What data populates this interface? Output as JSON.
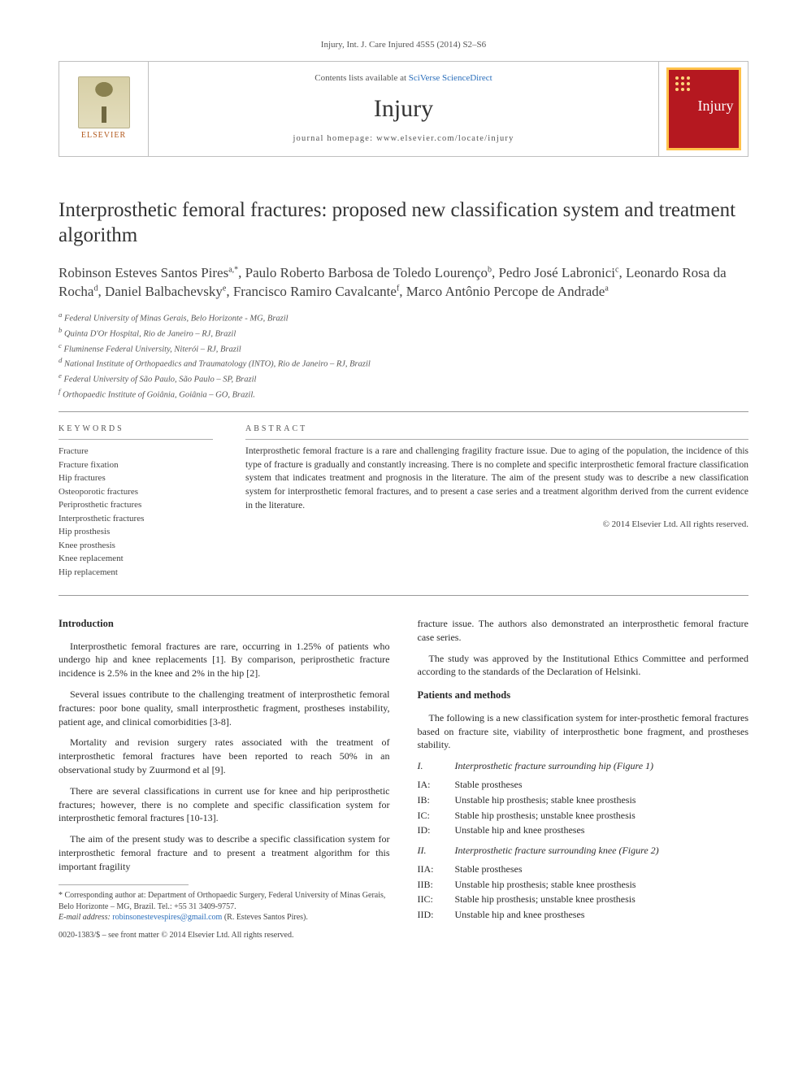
{
  "running_head": "Injury, Int. J. Care Injured 45S5 (2014) S2–S6",
  "masthead": {
    "contents_prefix": "Contents lists available at ",
    "contents_link": "SciVerse ScienceDirect",
    "journal": "Injury",
    "homepage_label": "journal homepage: www.elsevier.com/locate/injury",
    "publisher_word": "ELSEVIER",
    "cover_word": "Injury"
  },
  "article": {
    "title": "Interprosthetic femoral fractures: proposed new classification system and treatment algorithm",
    "authors_html": "Robinson Esteves Santos Pires<sup>a,*</sup>, Paulo Roberto Barbosa de Toledo Lourenço<sup>b</sup>, Pedro José Labronici<sup>c</sup>, Leonardo Rosa da Rocha<sup>d</sup>, Daniel Balbachevsky<sup>e</sup>, Francisco Ramiro Cavalcante<sup>f</sup>, Marco Antônio Percope de Andrade<sup>a</sup>",
    "affiliations": [
      "a Federal University of Minas Gerais, Belo Horizonte - MG, Brazil",
      "b Quinta D'Or Hospital, Rio de Janeiro – RJ, Brazil",
      "c Fluminense Federal University, Niterói – RJ, Brazil",
      "d National Institute of Orthopaedics and Traumatology (INTO), Rio de Janeiro – RJ, Brazil",
      "e Federal University of São Paulo, São Paulo – SP, Brazil",
      "f Orthopaedic Institute of Goiânia, Goiânia – GO, Brazil."
    ]
  },
  "ka": {
    "k_head": "KEYWORDS",
    "a_head": "ABSTRACT",
    "keywords": [
      "Fracture",
      "Fracture fixation",
      "Hip fractures",
      "Osteoporotic fractures",
      "Periprosthetic fractures",
      "Interprosthetic fractures",
      "Hip prosthesis",
      "Knee prosthesis",
      "Knee replacement",
      "Hip replacement"
    ],
    "abstract": "Interprosthetic femoral fracture is a rare and challenging fragility fracture issue. Due to aging of the population, the incidence of this type of fracture is gradually and constantly increasing. There is no complete and specific interprosthetic femoral fracture classification system that indicates treatment and prognosis in the literature. The aim of the present study was to describe a new classification system for interprosthetic femoral fractures, and to present a case series and a treatment algorithm derived from the current evidence in the literature.",
    "copyright": "© 2014 Elsevier Ltd. All rights reserved."
  },
  "body": {
    "left": {
      "h_intro": "Introduction",
      "p1": "Interprosthetic femoral fractures are rare, occurring in 1.25% of patients who undergo hip and knee replacements [1]. By comparison, periprosthetic fracture incidence is 2.5% in the knee and 2% in the hip [2].",
      "p2": "Several issues contribute to the challenging treatment of interprosthetic femoral fractures: poor bone quality, small interprosthetic fragment, prostheses instability, patient age, and clinical comorbidities [3-8].",
      "p3": "Mortality and revision surgery rates associated with the treatment of interprosthetic femoral fractures have been reported to reach 50% in an observational study by Zuurmond et al [9].",
      "p4": "There are several classifications in current use for knee and hip periprosthetic fractures; however, there is no complete and specific classification system for interprosthetic femoral fractures [10-13].",
      "p5": "The aim of the present study was to describe a specific classification system for interprosthetic femoral fracture and to present a treatment algorithm for this important fragility",
      "fn_corr": "* Corresponding author at: Department of Orthopaedic Surgery, Federal University of Minas Gerais, Belo Horizonte – MG, Brazil. Tel.: +55 31 3409-9757.",
      "fn_email_label": "E-mail address: ",
      "fn_email": "robinsonestevespires@gmail.com",
      "fn_email_suffix": " (R. Esteves Santos Pires)."
    },
    "right": {
      "p_top": "fracture issue. The authors also demonstrated an interprosthetic femoral fracture case series.",
      "p_ethics": "The study was approved by the Institutional Ethics Committee and performed according to the standards of the Declaration of Helsinki.",
      "h_methods": "Patients and methods",
      "p_methods": "The following is a new classification system for inter-prosthetic femoral fractures based on fracture site, viability of interprosthetic bone fragment, and prostheses stability.",
      "group1_title": "Interprosthetic fracture surrounding hip (Figure 1)",
      "group1_roman": "I.",
      "group1": [
        {
          "lbl": "IA:",
          "txt": "Stable prostheses"
        },
        {
          "lbl": "IB:",
          "txt": "Unstable hip prosthesis; stable knee prosthesis"
        },
        {
          "lbl": "IC:",
          "txt": "Stable hip prosthesis; unstable knee prosthesis"
        },
        {
          "lbl": "ID:",
          "txt": "Unstable hip and knee prostheses"
        }
      ],
      "group2_title": "Interprosthetic fracture surrounding knee (Figure 2)",
      "group2_roman": "II.",
      "group2": [
        {
          "lbl": "IIA:",
          "txt": "Stable prostheses"
        },
        {
          "lbl": "IIB:",
          "txt": "Unstable hip prosthesis; stable knee prosthesis"
        },
        {
          "lbl": "IIC:",
          "txt": "Stable hip prosthesis; unstable knee prosthesis"
        },
        {
          "lbl": "IID:",
          "txt": "Unstable hip and knee prostheses"
        }
      ]
    }
  },
  "doi": "0020-1383/$ – see front matter © 2014 Elsevier Ltd. All rights reserved."
}
